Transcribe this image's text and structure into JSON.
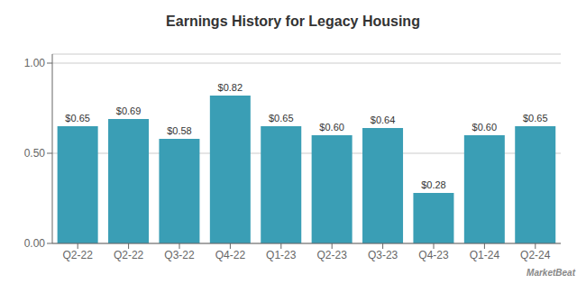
{
  "chart_data": {
    "type": "bar",
    "title": "Earnings History for Legacy Housing",
    "categories": [
      "Q2-22",
      "Q2-22",
      "Q3-22",
      "Q4-22",
      "Q1-23",
      "Q2-23",
      "Q3-23",
      "Q4-23",
      "Q1-24",
      "Q2-24"
    ],
    "values": [
      0.65,
      0.69,
      0.58,
      0.82,
      0.65,
      0.6,
      0.64,
      0.28,
      0.6,
      0.65
    ],
    "value_labels": [
      "$0.65",
      "$0.69",
      "$0.58",
      "$0.82",
      "$0.65",
      "$0.60",
      "$0.64",
      "$0.28",
      "$0.60",
      "$0.65"
    ],
    "data_labels": true,
    "color": "#3a9eb5",
    "ylim": [
      0.0,
      1.05
    ],
    "yticks": [
      {
        "value": 0.0,
        "label": "0.00"
      },
      {
        "value": 0.5,
        "label": "0.50"
      },
      {
        "value": 1.0,
        "label": "1.00"
      }
    ],
    "grid": true,
    "annotations": [
      "MarketBeat"
    ]
  }
}
